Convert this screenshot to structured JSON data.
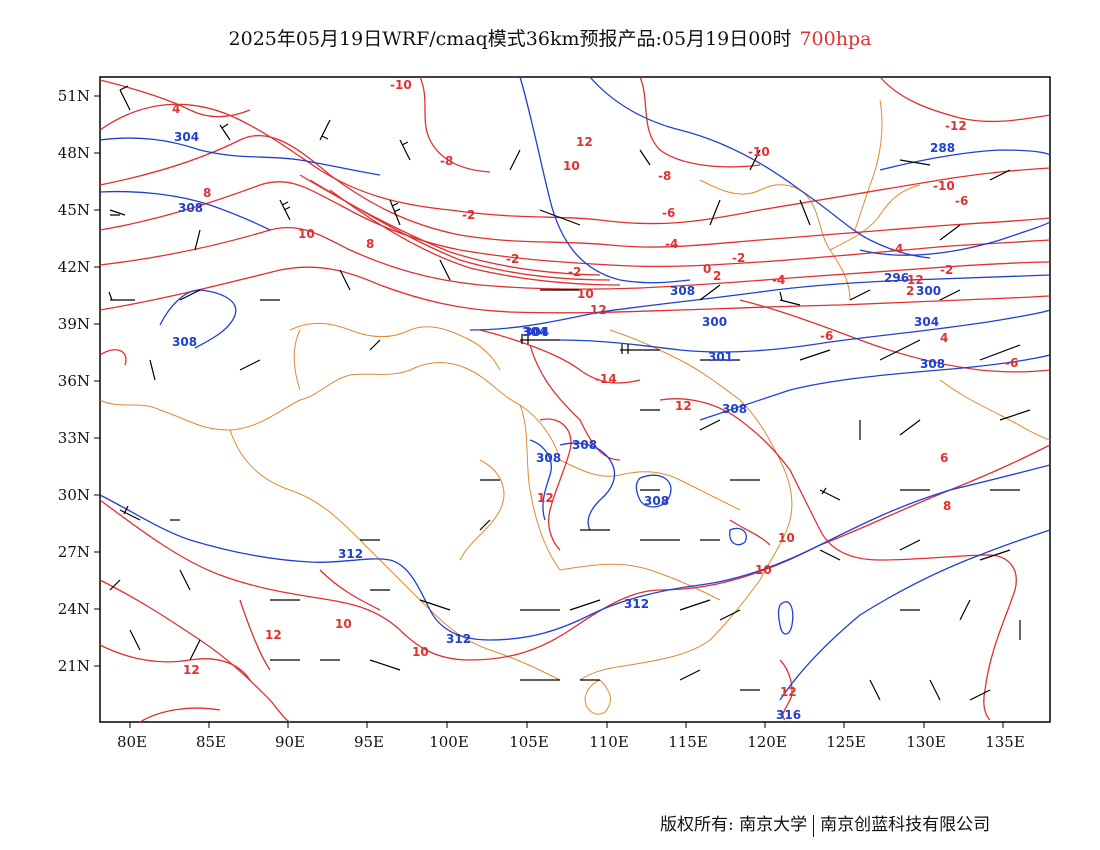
{
  "title": {
    "main": "2025年05月19日WRF/cmaq模式36km预报产品:05月19日00时",
    "level": "700hpa"
  },
  "colors": {
    "temperature": "#e03030",
    "height": "#2040d0",
    "border": "#e08a30",
    "wind": "#000000"
  },
  "axes": {
    "lon_ticks": [
      "80E",
      "85E",
      "90E",
      "95E",
      "100E",
      "105E",
      "110E",
      "115E",
      "120E",
      "125E",
      "130E",
      "135E"
    ],
    "lat_ticks": [
      "51N",
      "48N",
      "45N",
      "42N",
      "39N",
      "36N",
      "33N",
      "30N",
      "27N",
      "24N",
      "21N"
    ]
  },
  "contour_labels": {
    "temperature": [
      "-10",
      "-12",
      "4",
      "12",
      "10",
      "-8",
      "8",
      "-8",
      "-10",
      "-6",
      "-2",
      "-6",
      "10",
      "8",
      "-4",
      "-2",
      "-2",
      "-2",
      "-2",
      "0",
      "2",
      "-4",
      "10",
      "12",
      "-12",
      "-6",
      "-14",
      "-4",
      "12",
      "12",
      "10",
      "10",
      "10",
      "12",
      "12",
      "10",
      "12",
      "6",
      "8",
      "-10",
      "4",
      "-6",
      "2"
    ],
    "height": [
      "304",
      "308",
      "288",
      "304",
      "296",
      "300",
      "308",
      "300",
      "304",
      "304",
      "308",
      "301",
      "308",
      "308",
      "308",
      "308",
      "308",
      "312",
      "312",
      "312",
      "316"
    ]
  },
  "footer": {
    "left": "版权所有: 南京大学",
    "right": "南京创蓝科技有限公司"
  }
}
